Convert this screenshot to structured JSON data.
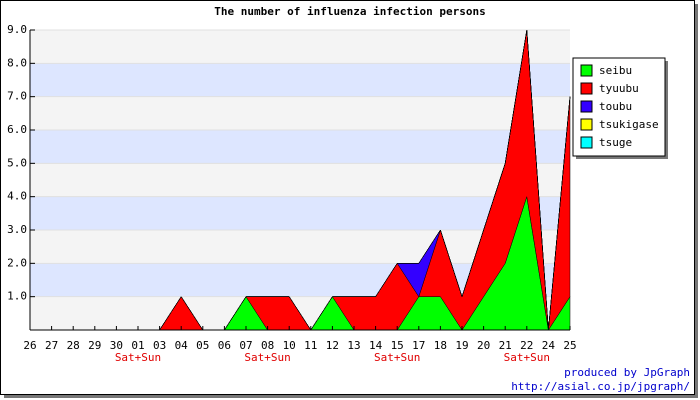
{
  "chart_data": {
    "type": "stacked_area",
    "title": "The number of influenza infection persons",
    "categories": [
      "26",
      "27",
      "28",
      "29",
      "30",
      "01",
      "03",
      "04",
      "05",
      "06",
      "07",
      "08",
      "10",
      "11",
      "12",
      "13",
      "14",
      "15",
      "17",
      "18",
      "19",
      "20",
      "21",
      "22",
      "24",
      "25"
    ],
    "sublabels": [
      null,
      null,
      null,
      null,
      null,
      "Sat+Sun",
      null,
      null,
      null,
      null,
      null,
      "Sat+Sun",
      null,
      null,
      null,
      null,
      null,
      "Sat+Sun",
      null,
      null,
      null,
      null,
      null,
      "Sat+Sun",
      null,
      null
    ],
    "series": [
      {
        "name": "seibu",
        "color": "#00ff00",
        "values": [
          0,
          0,
          0,
          0,
          0,
          0,
          0,
          0,
          0,
          0,
          1,
          0,
          0,
          0,
          1,
          0,
          0,
          0,
          1,
          1,
          0,
          1,
          2,
          4,
          0,
          1
        ]
      },
      {
        "name": "tyuubu",
        "color": "#ff0000",
        "values": [
          0,
          0,
          0,
          0,
          0,
          0,
          0,
          1,
          0,
          0,
          0,
          1,
          1,
          0,
          0,
          1,
          1,
          2,
          0,
          2,
          1,
          2,
          3,
          5,
          0,
          6
        ]
      },
      {
        "name": "toubu",
        "color": "#3300ff",
        "values": [
          0,
          0,
          0,
          0,
          0,
          0,
          0,
          0,
          0,
          0,
          0,
          0,
          0,
          0,
          0,
          0,
          0,
          0,
          1,
          0,
          0,
          0,
          0,
          0,
          0,
          0
        ]
      },
      {
        "name": "tsukigase",
        "color": "#ffff00",
        "values": [
          0,
          0,
          0,
          0,
          0,
          0,
          0,
          0,
          0,
          0,
          0,
          0,
          0,
          0,
          0,
          0,
          0,
          0,
          0,
          0,
          0,
          0,
          0,
          0,
          0,
          0
        ]
      },
      {
        "name": "tsuge",
        "color": "#00ffff",
        "values": [
          0,
          0,
          0,
          0,
          0,
          0,
          0,
          0,
          0,
          0,
          0,
          0,
          0,
          0,
          0,
          0,
          0,
          0,
          0,
          0,
          0,
          0,
          0,
          0,
          0,
          0
        ]
      }
    ],
    "ylim": [
      0,
      9
    ],
    "yticks": [
      {
        "value": 1,
        "label": "1.0"
      },
      {
        "value": 2,
        "label": "2.0"
      },
      {
        "value": 3,
        "label": "3.0"
      },
      {
        "value": 4,
        "label": "4.0"
      },
      {
        "value": 5,
        "label": "5.0"
      },
      {
        "value": 6,
        "label": "6.0"
      },
      {
        "value": 7,
        "label": "7.0"
      },
      {
        "value": 8,
        "label": "8.0"
      },
      {
        "value": 9,
        "label": "9.0"
      }
    ],
    "band_colors": [
      "#f4f4f4",
      "#dde6ff"
    ],
    "footer": [
      "produced by JpGraph",
      "http://asial.co.jp/jpgraph/"
    ]
  }
}
